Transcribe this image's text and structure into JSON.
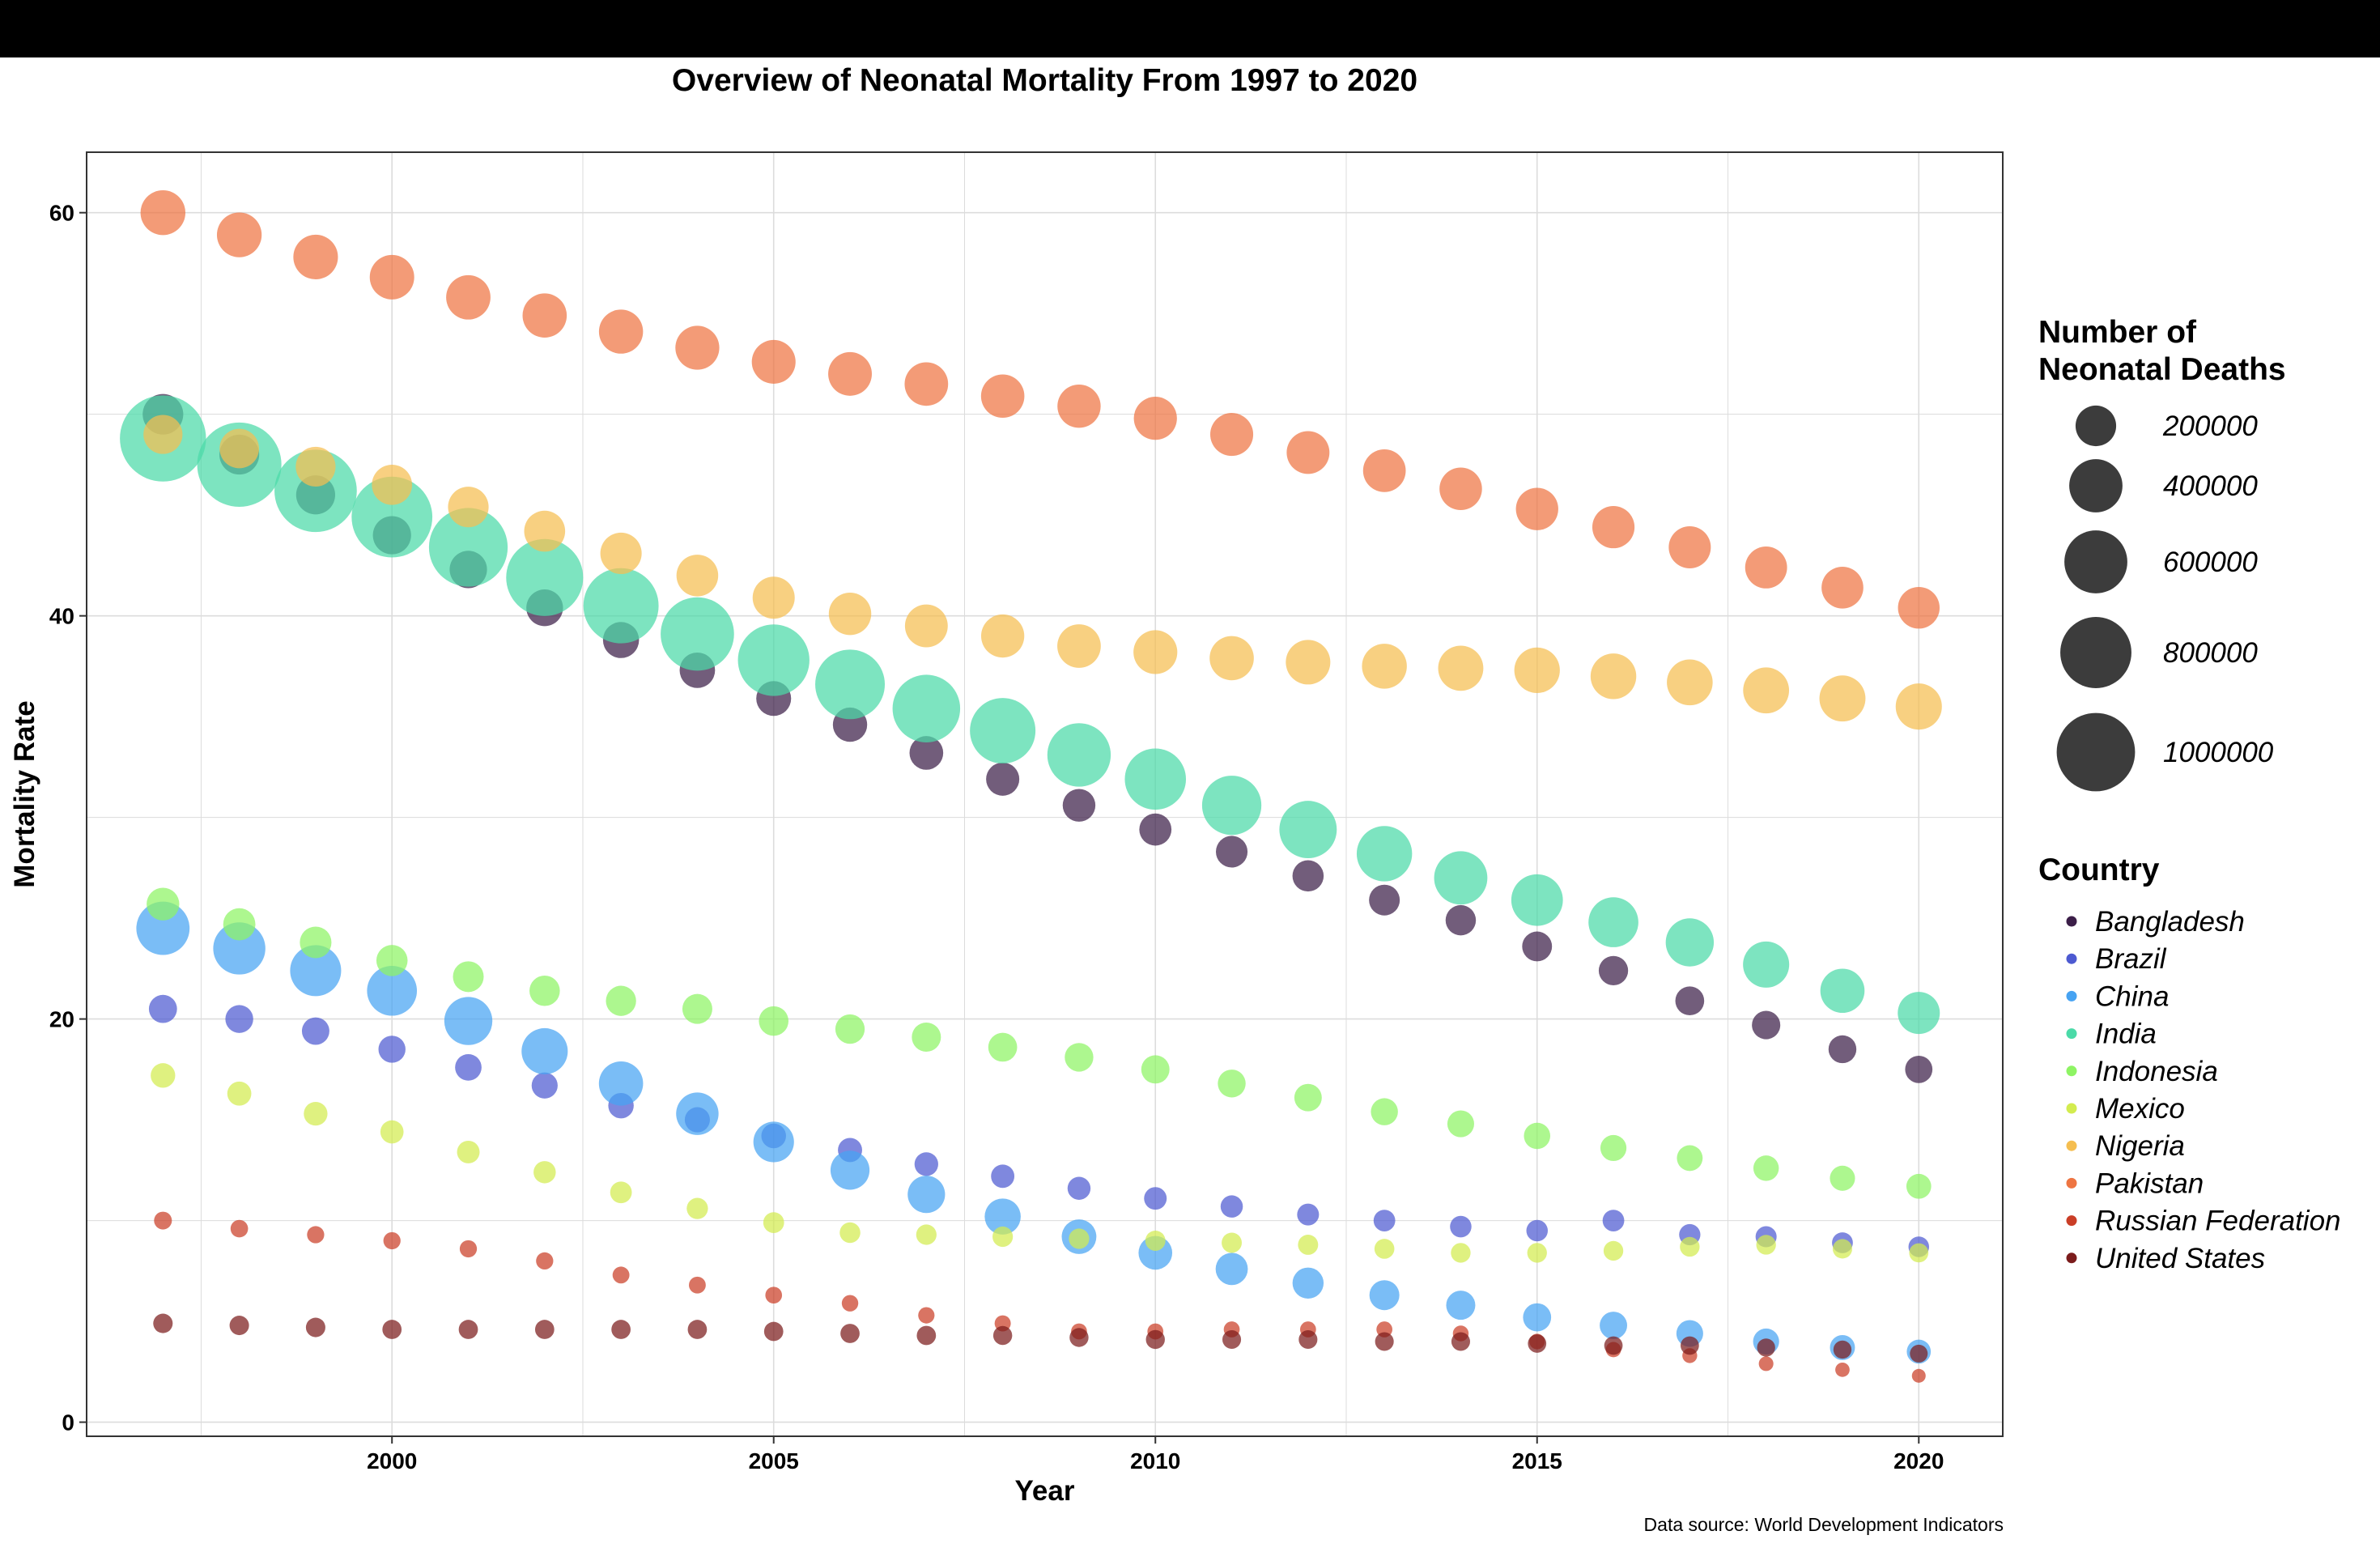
{
  "window": {
    "top_bar_color": "#000000"
  },
  "chart_data": {
    "type": "scatter",
    "title": "Overview of Neonatal Mortality From 1997 to 2020",
    "xlabel": "Year",
    "ylabel": "Mortality Rate",
    "xlim": [
      1996,
      2021.1
    ],
    "ylim": [
      -0.7,
      63
    ],
    "xticks": [
      2000,
      2005,
      2010,
      2015,
      2020
    ],
    "yticks": [
      0,
      20,
      40,
      60
    ],
    "grid": true,
    "legend_position": "right",
    "size_legend": {
      "title_lines": [
        "Number of",
        "Neonatal Deaths"
      ],
      "values": [
        200000,
        400000,
        600000,
        800000,
        1000000
      ],
      "labels": [
        "200000",
        "400000",
        "600000",
        "800000",
        "1000000"
      ],
      "color": "#2b2b2b"
    },
    "color_legend_title": "Country",
    "source": "Data source: World Development Indicators",
    "x": [
      1997,
      1998,
      1999,
      2000,
      2001,
      2002,
      2003,
      2004,
      2005,
      2006,
      2007,
      2008,
      2009,
      2010,
      2011,
      2012,
      2013,
      2014,
      2015,
      2016,
      2017,
      2018,
      2019,
      2020
    ],
    "series": [
      {
        "name": "Bangladesh",
        "color": "#3b1e48",
        "values": [
          50.0,
          48.0,
          46.0,
          44.0,
          42.3,
          40.4,
          38.8,
          37.3,
          35.9,
          34.6,
          33.2,
          31.9,
          30.6,
          29.4,
          28.3,
          27.1,
          25.9,
          24.9,
          23.6,
          22.4,
          20.9,
          19.7,
          18.5,
          17.5
        ],
        "deaths": [
          200000,
          190000,
          180000,
          170000,
          160000,
          152000,
          145000,
          138000,
          132000,
          126000,
          120000,
          115000,
          110000,
          105000,
          100000,
          96000,
          92000,
          88000,
          84000,
          80000,
          76000,
          72000,
          68000,
          64000
        ]
      },
      {
        "name": "Brazil",
        "color": "#4d5ad1",
        "values": [
          20.5,
          20.0,
          19.4,
          18.5,
          17.6,
          16.7,
          15.7,
          15.0,
          14.2,
          13.5,
          12.8,
          12.2,
          11.6,
          11.1,
          10.7,
          10.3,
          10.0,
          9.7,
          9.5,
          10.0,
          9.3,
          9.2,
          8.9,
          8.7
        ],
        "deaths": [
          70000,
          68000,
          65000,
          62000,
          58000,
          55000,
          51000,
          49000,
          46000,
          43000,
          40000,
          38000,
          36000,
          34000,
          32000,
          30000,
          29000,
          28000,
          28000,
          29000,
          27000,
          26000,
          25000,
          24000
        ]
      },
      {
        "name": "China",
        "color": "#47a3f2",
        "values": [
          24.5,
          23.5,
          22.4,
          21.4,
          19.9,
          18.4,
          16.8,
          15.3,
          13.9,
          12.5,
          11.3,
          10.2,
          9.2,
          8.4,
          7.6,
          6.9,
          6.3,
          5.8,
          5.2,
          4.8,
          4.4,
          4.0,
          3.7,
          3.5
        ],
        "deaths": [
          400000,
          380000,
          360000,
          340000,
          310000,
          280000,
          250000,
          225000,
          200000,
          180000,
          160000,
          145000,
          130000,
          120000,
          105000,
          95000,
          85000,
          78000,
          70000,
          65000,
          60000,
          55000,
          48000,
          42000
        ]
      },
      {
        "name": "India",
        "color": "#4bdaa8",
        "values": [
          48.8,
          47.5,
          46.2,
          44.9,
          43.4,
          41.9,
          40.5,
          39.1,
          37.8,
          36.6,
          35.4,
          34.3,
          33.1,
          31.9,
          30.6,
          29.4,
          28.2,
          27.0,
          25.9,
          24.8,
          23.8,
          22.7,
          21.4,
          20.3
        ],
        "deaths": [
          1240000,
          1180000,
          1120000,
          1070000,
          1010000,
          960000,
          910000,
          860000,
          810000,
          760000,
          710000,
          660000,
          610000,
          560000,
          520000,
          480000,
          440000,
          400000,
          370000,
          340000,
          310000,
          280000,
          250000,
          220000
        ]
      },
      {
        "name": "Indonesia",
        "color": "#8ef464",
        "values": [
          25.7,
          24.7,
          23.8,
          22.9,
          22.1,
          21.4,
          20.9,
          20.5,
          19.9,
          19.5,
          19.1,
          18.6,
          18.1,
          17.5,
          16.8,
          16.1,
          15.4,
          14.8,
          14.2,
          13.6,
          13.1,
          12.6,
          12.1,
          11.7
        ],
        "deaths": [
          110000,
          105000,
          100000,
          96000,
          92000,
          89000,
          87000,
          85000,
          82000,
          80000,
          78000,
          76000,
          74000,
          71000,
          68000,
          65000,
          62000,
          60000,
          57000,
          55000,
          53000,
          51000,
          49000,
          47000
        ]
      },
      {
        "name": "Mexico",
        "color": "#d3ec4f",
        "values": [
          17.2,
          16.3,
          15.3,
          14.4,
          13.4,
          12.4,
          11.4,
          10.6,
          9.9,
          9.4,
          9.3,
          9.2,
          9.1,
          9.0,
          8.9,
          8.8,
          8.6,
          8.4,
          8.4,
          8.5,
          8.7,
          8.8,
          8.6,
          8.4
        ],
        "deaths": [
          45000,
          42000,
          40000,
          37000,
          34000,
          32000,
          29000,
          27000,
          25000,
          24000,
          23000,
          23000,
          23000,
          22000,
          22000,
          22000,
          21000,
          20000,
          20000,
          20000,
          20000,
          20000,
          19000,
          18000
        ]
      },
      {
        "name": "Nigeria",
        "color": "#f5be50",
        "values": [
          49.0,
          48.3,
          47.4,
          46.5,
          45.4,
          44.2,
          43.1,
          42.0,
          40.9,
          40.1,
          39.5,
          39.0,
          38.5,
          38.2,
          37.9,
          37.7,
          37.5,
          37.4,
          37.3,
          37.0,
          36.7,
          36.3,
          35.9,
          35.5
        ],
        "deaths": [
          180000,
          185000,
          190000,
          195000,
          200000,
          205000,
          210000,
          215000,
          220000,
          225000,
          230000,
          235000,
          240000,
          245000,
          250000,
          255000,
          260000,
          265000,
          270000,
          272000,
          274000,
          276000,
          278000,
          280000
        ]
      },
      {
        "name": "Pakistan",
        "color": "#ee7542",
        "values": [
          60.0,
          58.9,
          57.8,
          56.8,
          55.8,
          54.9,
          54.1,
          53.3,
          52.6,
          52.0,
          51.5,
          50.9,
          50.4,
          49.8,
          49.0,
          48.1,
          47.2,
          46.3,
          45.3,
          44.4,
          43.4,
          42.4,
          41.4,
          40.4
        ],
        "deaths": [
          260000,
          258000,
          256000,
          254000,
          252000,
          250000,
          248000,
          246000,
          244000,
          242000,
          240000,
          238000,
          236000,
          234000,
          232000,
          230000,
          228000,
          226000,
          224000,
          222000,
          220000,
          218000,
          216000,
          214000
        ]
      },
      {
        "name": "Russian Federation",
        "color": "#ca3e27",
        "values": [
          10.0,
          9.6,
          9.3,
          9.0,
          8.6,
          8.0,
          7.3,
          6.8,
          6.3,
          5.9,
          5.3,
          4.9,
          4.5,
          4.5,
          4.6,
          4.6,
          4.6,
          4.4,
          4.0,
          3.6,
          3.3,
          2.9,
          2.6,
          2.3
        ],
        "deaths": [
          13000,
          12000,
          11000,
          11000,
          11000,
          11000,
          10000,
          10000,
          9500,
          9000,
          8500,
          8000,
          7500,
          7500,
          7500,
          7500,
          7500,
          7000,
          6500,
          6000,
          5000,
          4500,
          4000,
          3000
        ]
      },
      {
        "name": "United States",
        "color": "#7b1c1c",
        "values": [
          4.9,
          4.8,
          4.7,
          4.6,
          4.6,
          4.6,
          4.6,
          4.6,
          4.5,
          4.4,
          4.3,
          4.3,
          4.2,
          4.1,
          4.1,
          4.1,
          4.0,
          4.0,
          3.9,
          3.8,
          3.8,
          3.7,
          3.6,
          3.4
        ],
        "deaths": [
          19000,
          19000,
          19000,
          18000,
          18000,
          18000,
          18000,
          18000,
          18000,
          18000,
          18000,
          17000,
          17000,
          17000,
          16000,
          16000,
          16000,
          16000,
          15000,
          15000,
          15000,
          14000,
          14000,
          13000
        ]
      }
    ]
  }
}
